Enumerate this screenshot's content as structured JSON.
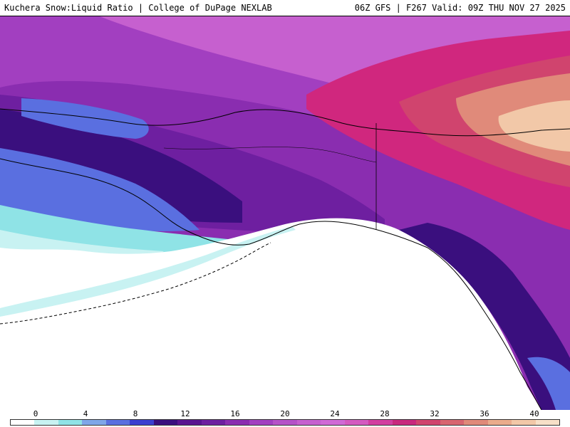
{
  "header": {
    "left_title": "Kuchera Snow:Liquid Ratio | College of DuPage NEXLAB",
    "right_title": "06Z GFS | F267 Valid: 09Z THU NOV 27 2025"
  },
  "legend": {
    "tick_labels": [
      "0",
      "4",
      "8",
      "12",
      "16",
      "20",
      "24",
      "28",
      "32",
      "36",
      "40"
    ],
    "colors": [
      "#ffffff",
      "#c8f2f2",
      "#8fe3e6",
      "#7fa6e8",
      "#5a6fe0",
      "#3b3fd0",
      "#3a0f7e",
      "#5a1490",
      "#6e1fa0",
      "#8a2db0",
      "#a23fc0",
      "#b552c8",
      "#c660cf",
      "#d06ad6",
      "#d45ac0",
      "#d23ea0",
      "#c8287e",
      "#d0446e",
      "#d86570",
      "#e08a7a",
      "#eaac8c",
      "#f2c8a8",
      "#f7e0c8"
    ]
  },
  "map": {
    "region": "Alaska / Gulf of Alaska",
    "colors": {
      "no_data": "#ffffff",
      "cyan_light": "#c8f2f2",
      "cyan": "#8fe3e6",
      "blue": "#5a6fe0",
      "indigo": "#3a0f7e",
      "purple": "#7a24a8",
      "violet": "#a23fc0",
      "orchid": "#c660cf",
      "magenta": "#d0277e",
      "coral": "#e08a7a",
      "peach": "#f2c8a8",
      "coastline": "#000000"
    }
  }
}
